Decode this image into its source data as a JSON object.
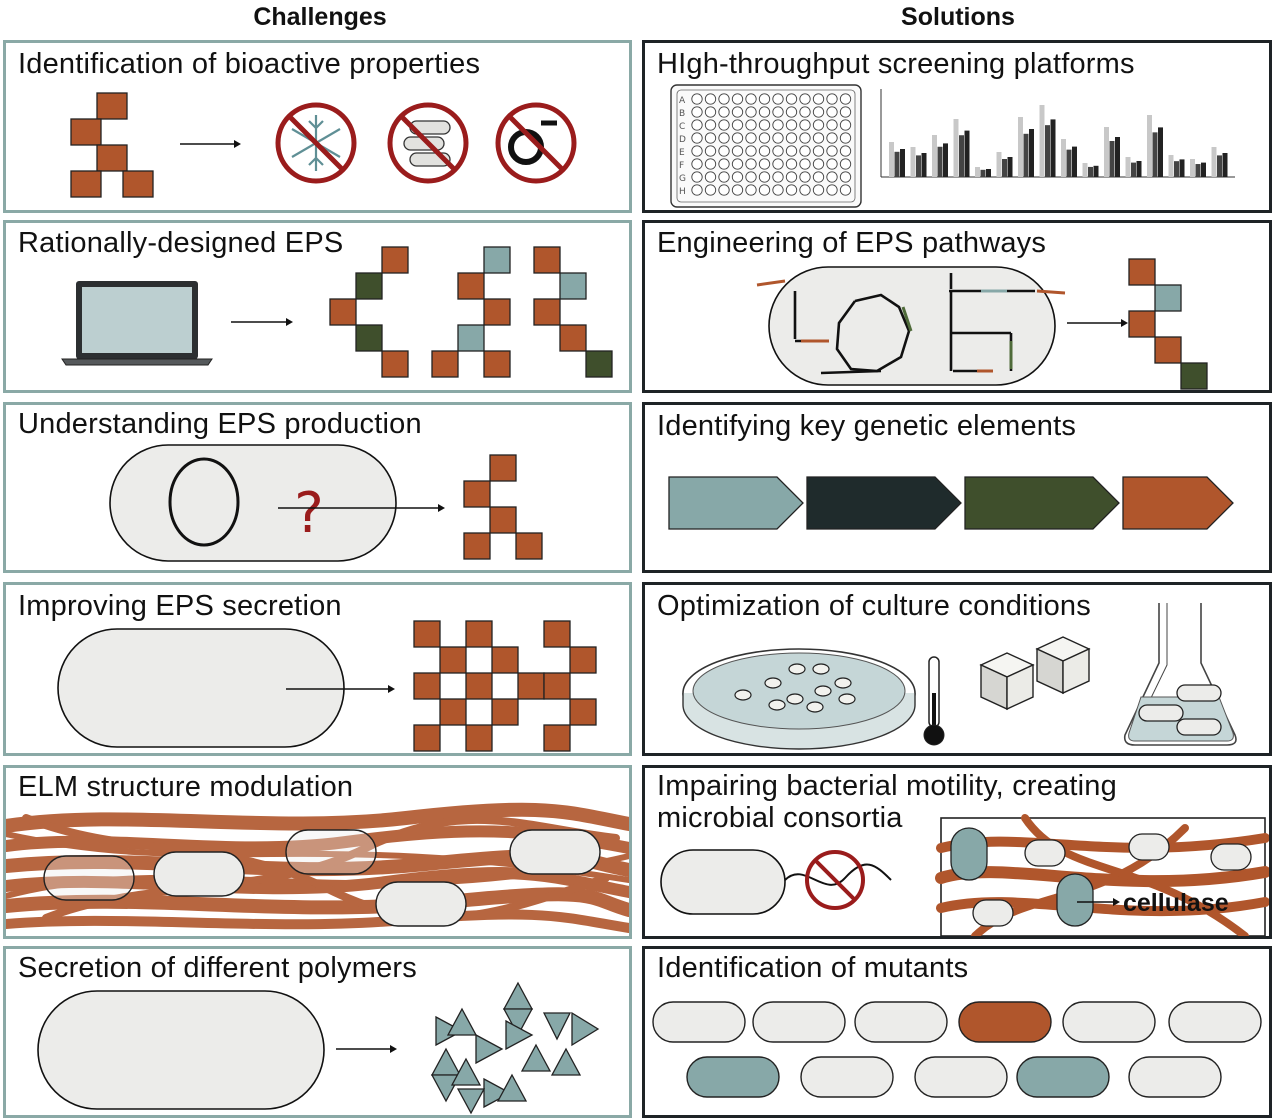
{
  "headers": {
    "challenges": "Challenges",
    "solutions": "Solutions"
  },
  "challenges": [
    {
      "title": "Identification of bioactive properties"
    },
    {
      "title": "Rationally-designed EPS"
    },
    {
      "title": "Understanding EPS production",
      "mark": "?"
    },
    {
      "title": "Improving EPS secretion"
    },
    {
      "title": "ELM structure modulation"
    },
    {
      "title": "Secretion of different polymers"
    }
  ],
  "solutions": [
    {
      "title": "HIgh-throughput screening platforms",
      "plate_rows": [
        "A",
        "B",
        "C",
        "D",
        "E",
        "F",
        "G",
        "H"
      ]
    },
    {
      "title": "Engineering of EPS pathways"
    },
    {
      "title": "Identifying key genetic elements"
    },
    {
      "title": "Optimization of culture conditions"
    },
    {
      "title_line1": "Impairing bacterial motility, creating",
      "title_line2": "microbial consortia",
      "enzyme_label": "cellulase"
    },
    {
      "title": "Identification of mutants"
    }
  ],
  "colors": {
    "rust": "#b0562c",
    "teal": "#87a8a8",
    "dark_green": "#3f4f2c",
    "charcoal": "#1f2b2c",
    "cell": "#ececea",
    "forbid_red": "#9a1c1c",
    "left_border": "#8aa9a6",
    "right_border": "#1e2326"
  }
}
